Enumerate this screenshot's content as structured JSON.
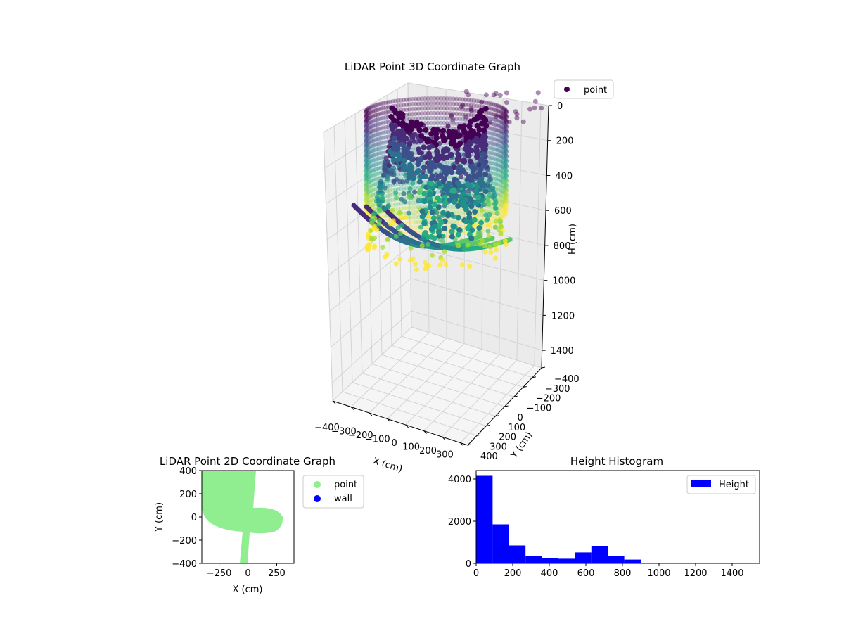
{
  "chart_data": [
    {
      "type": "scatter3d",
      "title": "LiDAR Point 3D Coordinate Graph",
      "xlabel": "X (cm)",
      "ylabel": "Y (cm)",
      "zlabel": "H (cm)",
      "xlim": [
        -400,
        300
      ],
      "ylim": [
        -400,
        400
      ],
      "zlim": [
        0,
        1500
      ],
      "z_inverted": true,
      "x_ticks": [
        "−400",
        "−300",
        "−200",
        "−100",
        "0",
        "100",
        "200",
        "300"
      ],
      "y_ticks": [
        "−400",
        "−300",
        "−200",
        "−100",
        "0",
        "100",
        "200",
        "300",
        "400"
      ],
      "z_ticks": [
        "0",
        "200",
        "400",
        "600",
        "800",
        "1000",
        "1200",
        "1400"
      ],
      "colormap": "viridis",
      "legend": {
        "label": "point",
        "placement": "upper-right outside",
        "marker_color": "#440154"
      },
      "grid": true
    },
    {
      "type": "scatter",
      "title": "LiDAR Point 2D Coordinate Graph",
      "xlabel": "X (cm)",
      "ylabel": "Y (cm)",
      "xlim": [
        -400,
        400
      ],
      "ylim": [
        -400,
        400
      ],
      "x_ticks": [
        "−250",
        "0",
        "250"
      ],
      "y_ticks": [
        "400",
        "200",
        "0",
        "−200",
        "−400"
      ],
      "series": [
        {
          "name": "point",
          "color": "#90ee90"
        },
        {
          "name": "wall",
          "color": "#0000ff"
        }
      ],
      "legend_placement": "upper-right outside"
    },
    {
      "type": "bar",
      "title": "Height Histogram",
      "bin_edges": [
        0,
        90,
        180,
        270,
        360,
        450,
        540,
        630,
        720,
        810,
        900,
        990,
        1080,
        1170,
        1260,
        1350,
        1440,
        1530
      ],
      "values": [
        4150,
        1850,
        850,
        350,
        250,
        220,
        520,
        820,
        350,
        180,
        0,
        0,
        0,
        0,
        0,
        0,
        0
      ],
      "xlim": [
        0,
        1550
      ],
      "ylim": [
        0,
        4400
      ],
      "x_ticks": [
        "0",
        "200",
        "400",
        "600",
        "800",
        "1000",
        "1200",
        "1400"
      ],
      "y_ticks": [
        "0",
        "2000",
        "4000"
      ],
      "series": [
        {
          "name": "Height",
          "color": "#0000ff"
        }
      ],
      "legend_placement": "top-right"
    }
  ]
}
